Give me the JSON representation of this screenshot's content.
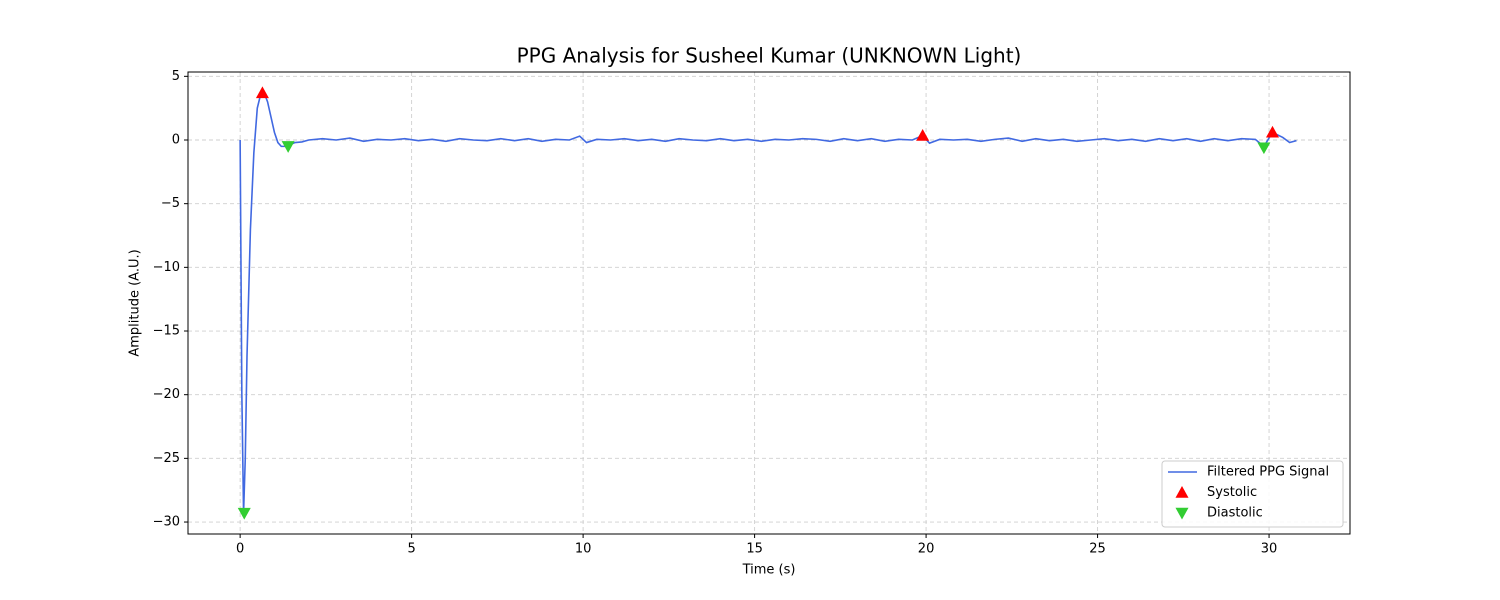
{
  "chart_data": {
    "type": "line",
    "title": "PPG Analysis for Susheel Kumar (UNKNOWN Light)",
    "x_label": "Time (s)",
    "y_label": "Amplitude (A.U.)",
    "series": [
      {
        "name": "Filtered PPG Signal",
        "color": "#4169e1",
        "kind": "line",
        "x": [
          0,
          0.05,
          0.1,
          0.15,
          0.2,
          0.3,
          0.4,
          0.5,
          0.6,
          0.7,
          0.8,
          0.9,
          1.0,
          1.1,
          1.2,
          1.35,
          1.6,
          1.8,
          2.0,
          2.4,
          2.8,
          3.2,
          3.6,
          4.0,
          4.4,
          4.8,
          5.2,
          5.6,
          6.0,
          6.4,
          6.8,
          7.2,
          7.6,
          8.0,
          8.4,
          8.8,
          9.2,
          9.6,
          9.9,
          10.1,
          10.4,
          10.8,
          11.2,
          11.6,
          12.0,
          12.4,
          12.8,
          13.2,
          13.6,
          14.0,
          14.4,
          14.8,
          15.2,
          15.6,
          16.0,
          16.4,
          16.8,
          17.2,
          17.6,
          18.0,
          18.4,
          18.8,
          19.2,
          19.6,
          19.9,
          20.1,
          20.4,
          20.8,
          21.2,
          21.6,
          22.0,
          22.4,
          22.8,
          23.2,
          23.6,
          24.0,
          24.4,
          24.8,
          25.2,
          25.6,
          26.0,
          26.4,
          26.8,
          27.2,
          27.6,
          28.0,
          28.4,
          28.8,
          29.2,
          29.6,
          29.85,
          30.1,
          30.4,
          30.6,
          30.8
        ],
        "values": [
          0,
          -20,
          -29.3,
          -25,
          -17,
          -7,
          -1,
          2.5,
          3.6,
          3.7,
          3.0,
          1.8,
          0.6,
          -0.2,
          -0.5,
          -0.5,
          -0.2,
          -0.15,
          0.0,
          0.1,
          0.0,
          0.15,
          -0.1,
          0.05,
          0.0,
          0.1,
          -0.05,
          0.05,
          -0.1,
          0.1,
          0.0,
          -0.05,
          0.1,
          -0.05,
          0.1,
          -0.1,
          0.05,
          0.0,
          0.3,
          -0.2,
          0.05,
          0.0,
          0.1,
          -0.05,
          0.05,
          -0.1,
          0.1,
          0.0,
          -0.05,
          0.1,
          -0.05,
          0.05,
          -0.1,
          0.05,
          0.0,
          0.1,
          0.05,
          -0.1,
          0.1,
          -0.05,
          0.1,
          -0.1,
          0.05,
          0.0,
          0.35,
          -0.25,
          0.05,
          0.0,
          0.05,
          -0.1,
          0.05,
          0.15,
          -0.1,
          0.1,
          -0.05,
          0.05,
          -0.1,
          0.0,
          0.1,
          -0.05,
          0.05,
          -0.1,
          0.1,
          -0.05,
          0.1,
          -0.1,
          0.1,
          -0.05,
          0.1,
          0.05,
          -0.5,
          0.6,
          0.2,
          -0.2,
          -0.05
        ]
      },
      {
        "name": "Systolic",
        "color": "#ff0000",
        "kind": "marker",
        "marker": "up",
        "x": [
          0.65,
          19.9,
          30.1
        ],
        "values": [
          3.7,
          0.35,
          0.6
        ]
      },
      {
        "name": "Diastolic",
        "color": "#32cd32",
        "kind": "marker",
        "marker": "down",
        "x": [
          0.12,
          1.4,
          29.85
        ],
        "values": [
          -29.3,
          -0.5,
          -0.6
        ]
      }
    ],
    "xlim": [
      -1.52,
      32.36
    ],
    "ylim": [
      -30.94,
      5.34
    ],
    "xticks": [
      0,
      5,
      10,
      15,
      20,
      25,
      30
    ],
    "yticks": [
      5,
      0,
      {
        "value": -5,
        "label": "−5"
      },
      {
        "value": -10,
        "label": "−10"
      },
      {
        "value": -15,
        "label": "−15"
      },
      {
        "value": -20,
        "label": "−20"
      },
      {
        "value": -25,
        "label": "−25"
      },
      {
        "value": -30,
        "label": "−30"
      }
    ],
    "grid": true,
    "legend": "lower right"
  }
}
